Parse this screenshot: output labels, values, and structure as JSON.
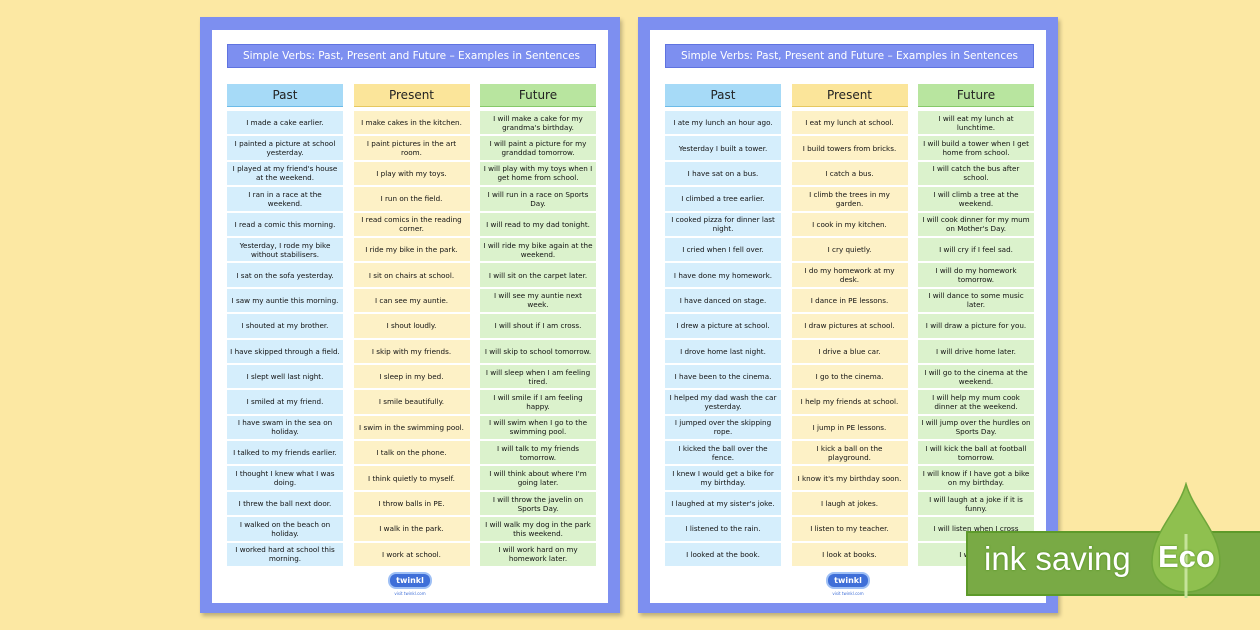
{
  "sheets": [
    {
      "title": "Simple Verbs: Past, Present and Future – Examples in Sentences",
      "headers": [
        "Past",
        "Present",
        "Future"
      ],
      "rows": [
        [
          "I made a cake earlier.",
          "I make cakes in the kitchen.",
          "I will make a cake for my grandma's birthday."
        ],
        [
          "I painted a picture at school yesterday.",
          "I paint pictures in the art room.",
          "I will paint a picture for my granddad tomorrow."
        ],
        [
          "I played at my friend's house at the weekend.",
          "I play with my toys.",
          "I will play with my toys when I get home from school."
        ],
        [
          "I ran in a race at the weekend.",
          "I run on the field.",
          "I will run in a race on Sports Day."
        ],
        [
          "I read a comic this morning.",
          "I read comics in the reading corner.",
          "I will read to my dad tonight."
        ],
        [
          "Yesterday, I rode my bike without stabilisers.",
          "I ride my bike in the park.",
          "I will ride my bike again at the weekend."
        ],
        [
          "I sat on the sofa yesterday.",
          "I sit on chairs at school.",
          "I will sit on the carpet later."
        ],
        [
          "I saw my auntie this morning.",
          "I can see my auntie.",
          "I will see my auntie next week."
        ],
        [
          "I shouted at my brother.",
          "I shout loudly.",
          "I will shout if I am cross."
        ],
        [
          "I have skipped through a field.",
          "I skip with my friends.",
          "I will skip to school tomorrow."
        ],
        [
          "I slept well last night.",
          "I sleep in my bed.",
          "I will sleep when I am feeling tired."
        ],
        [
          "I smiled at my friend.",
          "I smile beautifully.",
          "I will smile if I am feeling happy."
        ],
        [
          "I have swam in the sea on holiday.",
          "I swim in the swimming pool.",
          "I will swim when I go to the swimming pool."
        ],
        [
          "I talked to my friends earlier.",
          "I talk on the phone.",
          "I will talk to my friends tomorrow."
        ],
        [
          "I thought I knew what I was doing.",
          "I think quietly to myself.",
          "I will think about where I'm going later."
        ],
        [
          "I threw the ball next door.",
          "I throw balls in PE.",
          "I will throw the javelin on Sports Day."
        ],
        [
          "I walked on the beach on holiday.",
          "I walk in the park.",
          "I will walk my dog in the park this weekend."
        ],
        [
          "I worked hard at school this morning.",
          "I work at school.",
          "I will work hard on my homework later."
        ]
      ],
      "logo": "twinkl",
      "footer": "visit twinkl.com"
    },
    {
      "title": "Simple Verbs: Past, Present and Future – Examples in Sentences",
      "headers": [
        "Past",
        "Present",
        "Future"
      ],
      "rows": [
        [
          "I ate my lunch an hour ago.",
          "I eat my lunch at school.",
          "I will eat my lunch at lunchtime."
        ],
        [
          "Yesterday I built a tower.",
          "I build towers from bricks.",
          "I will build a tower when I get home from school."
        ],
        [
          "I have sat on a bus.",
          "I catch a bus.",
          "I will catch the bus after school."
        ],
        [
          "I climbed a tree earlier.",
          "I climb the trees in my garden.",
          "I will climb a tree at the weekend."
        ],
        [
          "I cooked pizza for dinner last night.",
          "I cook in my kitchen.",
          "I will cook dinner for my mum on Mother's Day."
        ],
        [
          "I cried when I fell over.",
          "I cry quietly.",
          "I will cry if I feel sad."
        ],
        [
          "I have done my homework.",
          "I do my homework at my desk.",
          "I will do my homework tomorrow."
        ],
        [
          "I have danced on stage.",
          "I dance in PE lessons.",
          "I will dance to some music later."
        ],
        [
          "I drew a picture at school.",
          "I draw pictures at school.",
          "I will draw a picture for you."
        ],
        [
          "I drove home last night.",
          "I drive a blue car.",
          "I will drive home later."
        ],
        [
          "I have been to the cinema.",
          "I go to the cinema.",
          "I will go to the cinema at the weekend."
        ],
        [
          "I helped my dad wash the car yesterday.",
          "I help my friends at school.",
          "I will help my mum cook dinner at the weekend."
        ],
        [
          "I jumped over the skipping rope.",
          "I jump in PE lessons.",
          "I will jump over the hurdles on Sports Day."
        ],
        [
          "I kicked the ball over the fence.",
          "I kick a ball on the playground.",
          "I will kick the ball at football tomorrow."
        ],
        [
          "I knew I would get a bike for my birthday.",
          "I know it's my birthday soon.",
          "I will know if I have got a bike on my birthday."
        ],
        [
          "I laughed at my sister's joke.",
          "I laugh at jokes.",
          "I will laugh at a joke if it is funny."
        ],
        [
          "I listened to the rain.",
          "I listen to my teacher.",
          "I will listen when I cross"
        ],
        [
          "I looked at the book.",
          "I look at books.",
          "I will look"
        ]
      ],
      "logo": "twinkl",
      "footer": "visit twinkl.com"
    }
  ],
  "badge": {
    "text": "ink saving",
    "eco": "Eco",
    "color": "#79aa45",
    "leaf_color": "#8fc04f"
  },
  "colors": {
    "background": "#fce8a3",
    "frame": "#7d8ff0",
    "past": "#d5eefc",
    "present": "#fdf1c6",
    "future": "#dbf2cc"
  }
}
